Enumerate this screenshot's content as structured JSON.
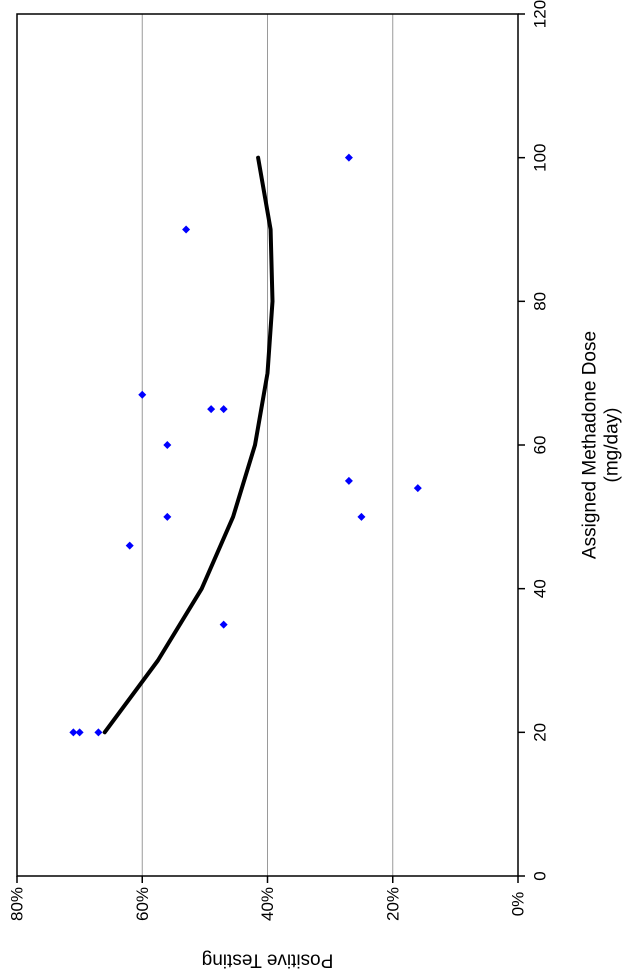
{
  "chart_data": {
    "type": "scatter",
    "orientation": "rotated-90-clockwise",
    "xlabel": "Assigned Methadone Dose",
    "xlabel_unit": "(mg/day)",
    "ylabel": "Positive Testing",
    "xlim": [
      0,
      120
    ],
    "ylim": [
      0,
      80
    ],
    "x_ticks": [
      0,
      20,
      40,
      60,
      80,
      100,
      120
    ],
    "y_ticks": [
      0,
      20,
      40,
      60,
      80
    ],
    "x_tick_labels": [
      "0",
      "20",
      "40",
      "60",
      "80",
      "100",
      "120"
    ],
    "y_tick_labels": [
      "0%",
      "20%",
      "40%",
      "60%",
      "80%"
    ],
    "grid": "horizontal-at-y-ticks",
    "legend": "none",
    "point_color": "#0000ff",
    "curve_color": "#000000",
    "points": [
      {
        "x": 20,
        "y": 71
      },
      {
        "x": 20,
        "y": 70
      },
      {
        "x": 20,
        "y": 67
      },
      {
        "x": 35,
        "y": 47
      },
      {
        "x": 46,
        "y": 62
      },
      {
        "x": 50,
        "y": 56
      },
      {
        "x": 50,
        "y": 25
      },
      {
        "x": 54,
        "y": 16
      },
      {
        "x": 55,
        "y": 27
      },
      {
        "x": 60,
        "y": 56
      },
      {
        "x": 65,
        "y": 49
      },
      {
        "x": 65,
        "y": 47
      },
      {
        "x": 67,
        "y": 60
      },
      {
        "x": 90,
        "y": 53
      },
      {
        "x": 100,
        "y": 27
      }
    ],
    "fit_curve": [
      {
        "x": 20,
        "y": 66
      },
      {
        "x": 30,
        "y": 57.5
      },
      {
        "x": 40,
        "y": 50.5
      },
      {
        "x": 50,
        "y": 45.5
      },
      {
        "x": 60,
        "y": 42
      },
      {
        "x": 70,
        "y": 40
      },
      {
        "x": 80,
        "y": 39.2
      },
      {
        "x": 90,
        "y": 39.5
      },
      {
        "x": 100,
        "y": 41.5
      }
    ]
  }
}
